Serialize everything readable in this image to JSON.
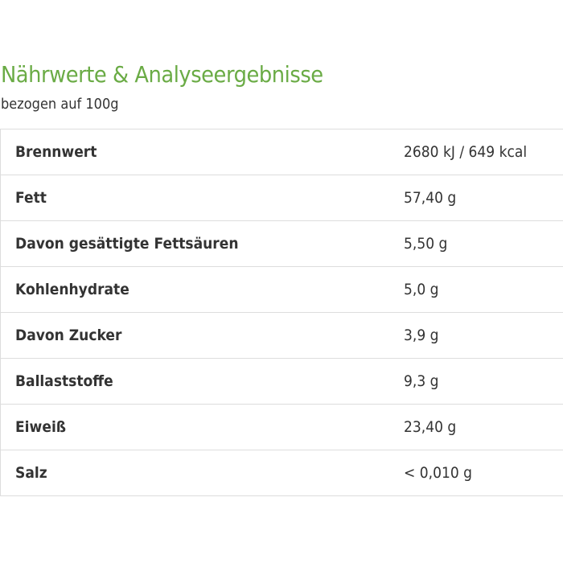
{
  "title": "Nährwerte & Analyseergebnisse",
  "subtitle": "bezogen auf 100g",
  "rows": [
    {
      "label": "Brennwert",
      "value": "2680 kJ / 649 kcal"
    },
    {
      "label": "Fett",
      "value": "57,40 g"
    },
    {
      "label": "Davon gesättigte Fettsäuren",
      "value": "5,50 g"
    },
    {
      "label": "Kohlenhydrate",
      "value": "5,0 g"
    },
    {
      "label": "Davon Zucker",
      "value": "3,9 g"
    },
    {
      "label": "Ballaststoffe",
      "value": "9,3 g"
    },
    {
      "label": "Eiweiß",
      "value": "23,40 g"
    },
    {
      "label": "Salz",
      "value": "< 0,010 g"
    }
  ],
  "colors": {
    "title": "#6aab45"
  }
}
